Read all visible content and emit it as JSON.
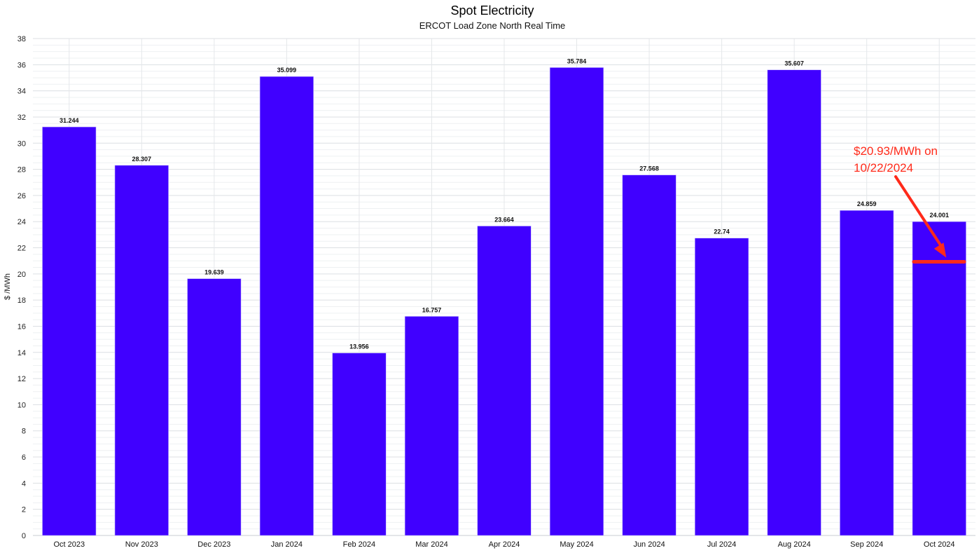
{
  "chart_data": {
    "type": "bar",
    "title": "Spot Electricity",
    "subtitle": "ERCOT Load Zone North Real Time",
    "ylabel": "$ /MWh",
    "xlabel": "",
    "ylim": [
      0,
      38
    ],
    "y_ticks": [
      0,
      2,
      4,
      6,
      8,
      10,
      12,
      14,
      16,
      18,
      20,
      22,
      24,
      26,
      28,
      30,
      32,
      34,
      36,
      38
    ],
    "grid": true,
    "categories": [
      "Oct 2023",
      "Nov 2023",
      "Dec 2023",
      "Jan 2024",
      "Feb 2024",
      "Mar 2024",
      "Apr 2024",
      "May 2024",
      "Jun 2024",
      "Jul 2024",
      "Aug 2024",
      "Sep 2024",
      "Oct 2024"
    ],
    "values": [
      31.244,
      28.307,
      19.639,
      35.099,
      13.956,
      16.757,
      23.664,
      35.784,
      27.568,
      22.74,
      35.607,
      24.859,
      24.001
    ],
    "data_labels": [
      "31.244",
      "28.307",
      "19.639",
      "35.099",
      "13.956",
      "16.757",
      "23.664",
      "35.784",
      "27.568",
      "22.74",
      "35.607",
      "24.859",
      "24.001"
    ],
    "bar_color": "#4000ff",
    "annotation": {
      "lines": [
        "$20.93/MWh on",
        "10/22/2024"
      ],
      "marker_value": 20.93,
      "category": "Oct 2024",
      "color": "#ff2a1a"
    }
  }
}
